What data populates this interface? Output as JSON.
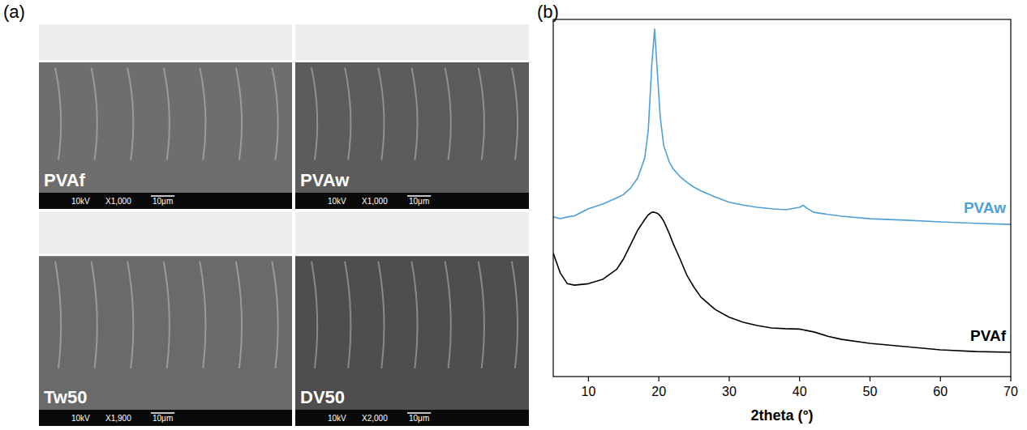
{
  "panel_labels": [
    "(a)",
    "(b)"
  ],
  "sem_images": [
    {
      "label": "PVAf",
      "voltage": "10kV",
      "magnification": "X1,000",
      "scale": "10μm"
    },
    {
      "label": "PVAw",
      "voltage": "10kV",
      "magnification": "X1,000",
      "scale": "10μm"
    },
    {
      "label": "Tw50",
      "voltage": "10kV",
      "magnification": "X1,900",
      "scale": "10μm"
    },
    {
      "label": "DV50",
      "voltage": "10kV",
      "magnification": "X2,000",
      "scale": "10μm"
    }
  ],
  "chart_data": {
    "type": "line",
    "x_label": "2theta (°)",
    "x": [
      5,
      6,
      7,
      8,
      10,
      12,
      14,
      15,
      16,
      17,
      18,
      18.5,
      19,
      19.4,
      19.8,
      20.2,
      20.7,
      21.5,
      22,
      23,
      24,
      25,
      26,
      28,
      30,
      32,
      34,
      36,
      38,
      40,
      40.5,
      41,
      42,
      44,
      46,
      50,
      55,
      60,
      65,
      70
    ],
    "series": [
      {
        "name": "PVAw",
        "color": "#4f9fd8",
        "values": [
          44.7,
          44.2,
          44.7,
          45,
          47,
          48.3,
          50,
          51,
          52.8,
          55.6,
          61.2,
          69,
          87.3,
          97.3,
          85,
          72.6,
          64.6,
          60,
          58.3,
          56,
          54.4,
          53,
          52,
          50.3,
          48.8,
          48,
          47.4,
          47,
          46.7,
          47.4,
          48,
          47.2,
          46,
          45.4,
          44.9,
          44.2,
          43.8,
          43.3,
          42.9,
          42.6
        ]
      },
      {
        "name": "PVAf",
        "color": "#000000",
        "values": [
          34.5,
          29,
          26,
          25.6,
          26,
          27.2,
          30,
          33,
          37,
          41,
          44,
          45.3,
          46,
          46,
          45.7,
          45,
          43.5,
          40,
          37.4,
          33,
          28.3,
          25,
          22.2,
          18.8,
          16.6,
          15.2,
          14.3,
          13.6,
          13.4,
          13.3,
          13.1,
          12.9,
          12.5,
          11.3,
          10.4,
          9.3,
          8.4,
          7.5,
          7,
          6.8
        ]
      }
    ],
    "xlim": [
      5,
      70
    ],
    "xticks": [
      10,
      20,
      30,
      40,
      50,
      60,
      70
    ],
    "ylim": [
      0,
      100
    ],
    "tick_labels": "x"
  }
}
